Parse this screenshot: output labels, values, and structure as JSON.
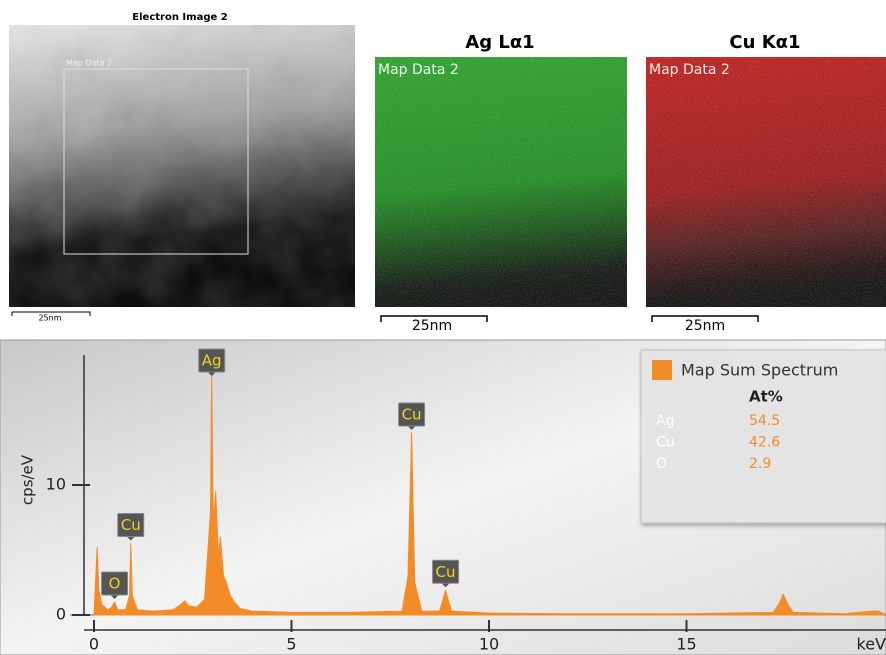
{
  "images": [
    {
      "title": "Electron Image 2",
      "overlay": "Map Data 2",
      "scale": "25nm"
    },
    {
      "title": "Ag Lα1",
      "overlay": "Map Data 2",
      "scale": "25nm"
    },
    {
      "title": "Cu Kα1",
      "overlay": "Map Data 2",
      "scale": "25nm"
    }
  ],
  "chart_data": {
    "type": "area",
    "x_label": "keV",
    "y_label": "cps/eV",
    "xlim": [
      0,
      20
    ],
    "ylim": [
      0,
      20
    ],
    "xticks": [
      0,
      5,
      10,
      15
    ],
    "yticks": [
      0,
      10
    ],
    "x": [
      0,
      0.08,
      0.12,
      0.2,
      0.35,
      0.45,
      0.52,
      0.6,
      0.8,
      0.9,
      0.93,
      0.97,
      1.1,
      1.5,
      2.0,
      2.2,
      2.3,
      2.4,
      2.6,
      2.8,
      2.95,
      2.98,
      3.02,
      3.08,
      3.15,
      3.2,
      3.28,
      3.35,
      3.45,
      3.55,
      3.7,
      4.0,
      5.0,
      6.5,
      7.8,
      7.95,
      8.04,
      8.12,
      8.3,
      8.75,
      8.9,
      9.05,
      10,
      12,
      15,
      17.2,
      17.35,
      17.45,
      17.55,
      17.7,
      19,
      19.7,
      19.85,
      20
    ],
    "series": [
      {
        "name": "Map Sum Spectrum",
        "color": "#f28c28",
        "values": [
          0,
          5.2,
          2,
          0.8,
          0.4,
          0.6,
          1.0,
          0.4,
          0.4,
          1.5,
          5.5,
          1.5,
          0.4,
          0.3,
          0.4,
          0.8,
          1.1,
          0.7,
          0.6,
          1.2,
          8,
          18.8,
          7,
          9.5,
          4.5,
          6,
          3,
          2.5,
          1.5,
          1.0,
          0.5,
          0.3,
          0.2,
          0.2,
          0.3,
          3,
          14,
          2.5,
          0.3,
          0.3,
          1.9,
          0.3,
          0.15,
          0.1,
          0.1,
          0.2,
          0.9,
          1.6,
          0.9,
          0.2,
          0.1,
          0.3,
          0.3,
          0.1
        ]
      }
    ],
    "annotations": [
      "Ag",
      "Cu",
      "O",
      "Cu",
      "Cu"
    ],
    "table": {
      "header": "At%",
      "rows": [
        [
          "Ag",
          54.5
        ],
        [
          "Cu",
          42.6
        ],
        [
          "O",
          2.9
        ]
      ]
    }
  }
}
